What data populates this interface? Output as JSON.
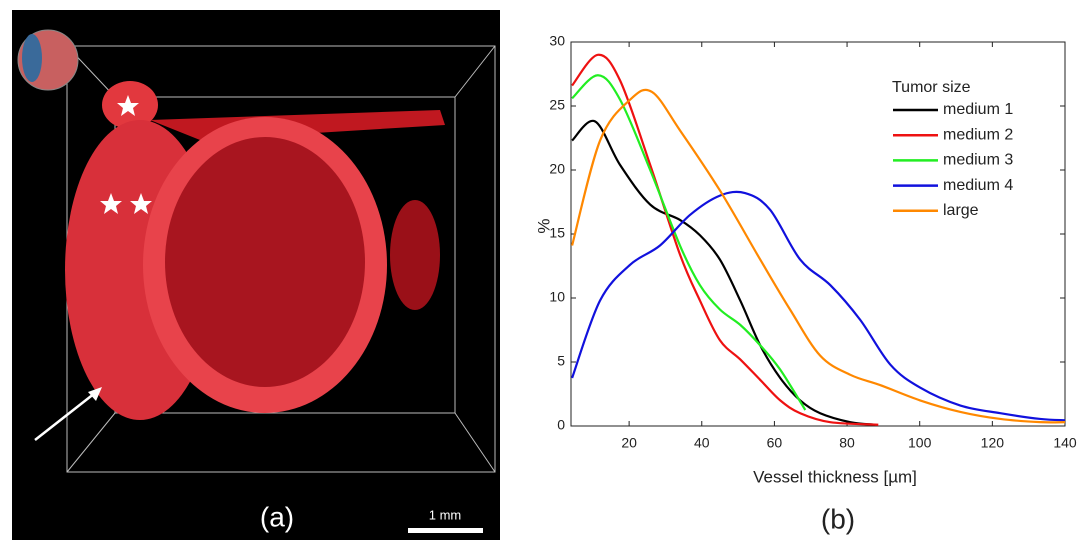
{
  "panel_a": {
    "label": "(a)",
    "scale_bar": "1 mm"
  },
  "chart_data": {
    "type": "line",
    "label": "(b)",
    "xlabel": "Vessel thickness [µm]",
    "ylabel": "%",
    "xlim": [
      4,
      140
    ],
    "xticks": [
      20,
      40,
      60,
      80,
      100,
      120,
      140
    ],
    "ylim": [
      0,
      30
    ],
    "yticks": [
      0,
      5,
      10,
      15,
      20,
      25,
      30
    ],
    "legend": "upper right",
    "legend_title": "Tumor size",
    "series": [
      {
        "name": "medium 1",
        "color": "#000000",
        "x": [
          4.3,
          10.6,
          17.5,
          25.8,
          34.0,
          39.5,
          45.0,
          50.6,
          56.1,
          61.6,
          67.1,
          72.6,
          80.9,
          87.7
        ],
        "values": [
          22.3,
          23.8,
          20.4,
          17.3,
          16.1,
          14.9,
          13.0,
          9.8,
          6.3,
          3.75,
          2.0,
          1.0,
          0.3,
          0.1
        ]
      },
      {
        "name": "medium 2",
        "color": "#ee1111",
        "x": [
          4.3,
          11.4,
          17.5,
          25.8,
          34.0,
          39.5,
          45.0,
          50.6,
          56.1,
          61.6,
          67.1,
          75.4,
          88.6
        ],
        "values": [
          26.6,
          29.0,
          27.0,
          20.4,
          13.4,
          9.8,
          6.7,
          5.2,
          3.6,
          2.0,
          1.0,
          0.3,
          0.1
        ]
      },
      {
        "name": "medium 3",
        "color": "#22ee22",
        "x": [
          4.3,
          11.4,
          17.5,
          25.8,
          34.0,
          39.5,
          45.0,
          50.6,
          56.1,
          61.6,
          68.5
        ],
        "values": [
          25.6,
          27.4,
          25.5,
          20.0,
          14.1,
          11.0,
          9.1,
          7.9,
          6.3,
          4.4,
          1.25
        ]
      },
      {
        "name": "medium 4",
        "color": "#1111dd",
        "x": [
          4.3,
          12.0,
          20.3,
          28.5,
          36.8,
          45.0,
          51.9,
          58.8,
          67.1,
          75.4,
          83.6,
          91.9,
          100.1,
          111.2,
          122.2,
          133.2,
          140
        ],
        "values": [
          3.75,
          9.8,
          12.6,
          14.1,
          16.5,
          18.0,
          18.2,
          16.9,
          13.0,
          11.0,
          8.3,
          4.8,
          3.0,
          1.6,
          1.0,
          0.55,
          0.45
        ]
      },
      {
        "name": "large",
        "color": "#ff8800",
        "x": [
          4.3,
          12.0,
          20.3,
          26.3,
          34.0,
          45.0,
          56.1,
          64.3,
          72.6,
          80.9,
          89.1,
          100.1,
          111.2,
          122.2,
          133.2,
          140
        ],
        "values": [
          14.1,
          22.3,
          25.5,
          26.1,
          23.1,
          18.4,
          13.0,
          9.1,
          5.5,
          4.0,
          3.2,
          2.0,
          1.1,
          0.55,
          0.3,
          0.3
        ]
      }
    ]
  }
}
